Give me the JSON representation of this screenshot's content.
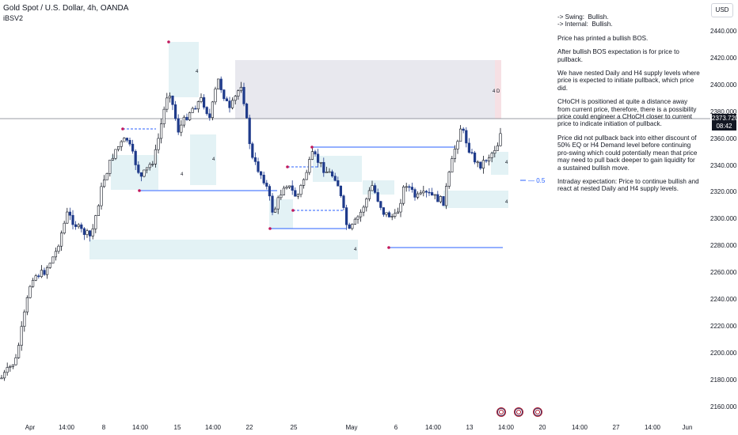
{
  "header": {
    "title": "Gold Spot / U.S. Dollar, 4h, OANDA",
    "indicator": "iBSV2"
  },
  "currency_button": "USD",
  "price_tag": {
    "price": "2373.720",
    "countdown": "08:42"
  },
  "y_axis_labels": [
    "2440.000",
    "2420.000",
    "2400.000",
    "2380.000",
    "2360.000",
    "2340.000",
    "2320.000",
    "2300.000",
    "2280.000",
    "2260.000",
    "2240.000",
    "2220.000",
    "2200.000",
    "2180.000",
    "2160.000"
  ],
  "x_axis_labels": [
    "Apr",
    "14:00",
    "8",
    "14:00",
    "15",
    "14:00",
    "22",
    "25",
    "May",
    "6",
    "14:00",
    "13",
    "14:00",
    "20",
    "14:00",
    "27",
    "14:00",
    "Jun"
  ],
  "eq_label": "— 0.5",
  "zone_labels": {
    "bos": "4",
    "supply": "4  D"
  },
  "notes": {
    "swing": "-> Swing:  Bullish.",
    "internal": "-> Internal:  Bullish.",
    "p1": "Price has printed a bullish BOS.",
    "p2": "After bullish BOS expectation is for price to pullback.",
    "p3": "We have nested Daily and H4 supply levels where price is expected to initiate pullback, which price did.",
    "p4": "CHoCH is positioned at quite a distance away from current price, therefore, there is a possibility price could engineer a CHoCH closer to current price to indicate initiation of pullback.",
    "p5": "Price did not pullback back into either discount of 50% EQ or H4 Demand level before continuing pro-swing which could potentially mean that price may need to pull back deeper to gain liquidity for a sustained bullish move.",
    "p6": "Intraday expectation: Price to continue bullish and react at nested Daily and H4 supply levels."
  },
  "colors": {
    "up": "#131722",
    "down": "#1e3a8a",
    "demand_zone": "#e3f2f5",
    "supply_zone": "#e8e8ee",
    "bos_line": "#2962ff",
    "swing_dot": "#c2185b"
  }
}
